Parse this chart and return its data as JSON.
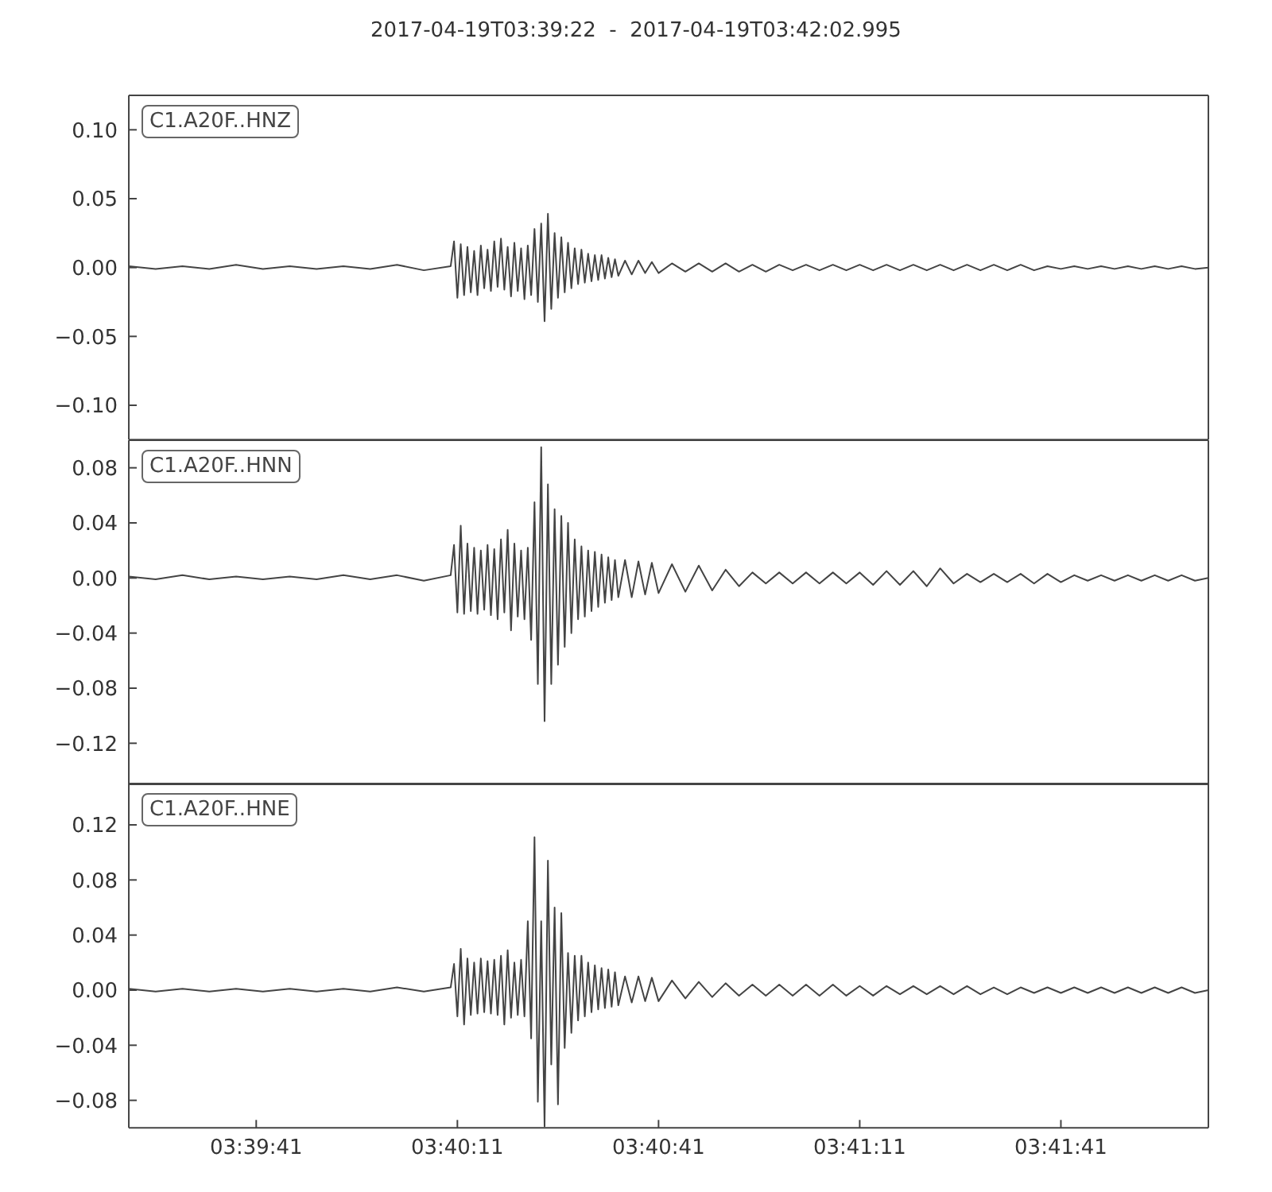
{
  "chart_data": [
    {
      "type": "line",
      "title": "2017-04-19T03:39:22  -  2017-04-19T03:42:02.995",
      "x": [
        "2017-04-19T03:39:22",
        "2017-04-19T03:39:26",
        "2017-04-19T03:39:30",
        "2017-04-19T03:39:34",
        "2017-04-19T03:39:38",
        "2017-04-19T03:39:42",
        "2017-04-19T03:39:46",
        "2017-04-19T03:39:50",
        "2017-04-19T03:39:54",
        "2017-04-19T03:39:58",
        "2017-04-19T03:40:02",
        "2017-04-19T03:40:06",
        "2017-04-19T03:40:10",
        "2017-04-19T03:40:10.500",
        "2017-04-19T03:40:11",
        "2017-04-19T03:40:11.500",
        "2017-04-19T03:40:12",
        "2017-04-19T03:40:12.500",
        "2017-04-19T03:40:13",
        "2017-04-19T03:40:13.500",
        "2017-04-19T03:40:14",
        "2017-04-19T03:40:14.500",
        "2017-04-19T03:40:15",
        "2017-04-19T03:40:15.500",
        "2017-04-19T03:40:16",
        "2017-04-19T03:40:16.500",
        "2017-04-19T03:40:17",
        "2017-04-19T03:40:17.500",
        "2017-04-19T03:40:18",
        "2017-04-19T03:40:18.500",
        "2017-04-19T03:40:19",
        "2017-04-19T03:40:19.500",
        "2017-04-19T03:40:20",
        "2017-04-19T03:40:20.500",
        "2017-04-19T03:40:21",
        "2017-04-19T03:40:21.500",
        "2017-04-19T03:40:22",
        "2017-04-19T03:40:22.500",
        "2017-04-19T03:40:23",
        "2017-04-19T03:40:23.500",
        "2017-04-19T03:40:24",
        "2017-04-19T03:40:24.500",
        "2017-04-19T03:40:25",
        "2017-04-19T03:40:25.500",
        "2017-04-19T03:40:26",
        "2017-04-19T03:40:26.500",
        "2017-04-19T03:40:27",
        "2017-04-19T03:40:27.500",
        "2017-04-19T03:40:28",
        "2017-04-19T03:40:28.500",
        "2017-04-19T03:40:29",
        "2017-04-19T03:40:29.500",
        "2017-04-19T03:40:30",
        "2017-04-19T03:40:30.500",
        "2017-04-19T03:40:31",
        "2017-04-19T03:40:31.500",
        "2017-04-19T03:40:32",
        "2017-04-19T03:40:32.500",
        "2017-04-19T03:40:33",
        "2017-04-19T03:40:33.500",
        "2017-04-19T03:40:34",
        "2017-04-19T03:40:34.500",
        "2017-04-19T03:40:35",
        "2017-04-19T03:40:36",
        "2017-04-19T03:40:37",
        "2017-04-19T03:40:38",
        "2017-04-19T03:40:39",
        "2017-04-19T03:40:40",
        "2017-04-19T03:40:41",
        "2017-04-19T03:40:43",
        "2017-04-19T03:40:45",
        "2017-04-19T03:40:47",
        "2017-04-19T03:40:49",
        "2017-04-19T03:40:51",
        "2017-04-19T03:40:53",
        "2017-04-19T03:40:55",
        "2017-04-19T03:40:57",
        "2017-04-19T03:40:59",
        "2017-04-19T03:41:01",
        "2017-04-19T03:41:03",
        "2017-04-19T03:41:05",
        "2017-04-19T03:41:07",
        "2017-04-19T03:41:09",
        "2017-04-19T03:41:11",
        "2017-04-19T03:41:13",
        "2017-04-19T03:41:15",
        "2017-04-19T03:41:17",
        "2017-04-19T03:41:19",
        "2017-04-19T03:41:21",
        "2017-04-19T03:41:23",
        "2017-04-19T03:41:25",
        "2017-04-19T03:41:27",
        "2017-04-19T03:41:29",
        "2017-04-19T03:41:31",
        "2017-04-19T03:41:33",
        "2017-04-19T03:41:35",
        "2017-04-19T03:41:37",
        "2017-04-19T03:41:39",
        "2017-04-19T03:41:41",
        "2017-04-19T03:41:43",
        "2017-04-19T03:41:45",
        "2017-04-19T03:41:47",
        "2017-04-19T03:41:49",
        "2017-04-19T03:41:51",
        "2017-04-19T03:41:53",
        "2017-04-19T03:41:55",
        "2017-04-19T03:41:57",
        "2017-04-19T03:41:59",
        "2017-04-19T03:42:01",
        "2017-04-19T03:42:02.995"
      ],
      "series": [
        {
          "name": "C1.A20F..HNZ",
          "color": "#444444",
          "values": [
            0.001,
            -0.001,
            0.001,
            -0.001,
            0.002,
            -0.001,
            0.001,
            -0.001,
            0.001,
            -0.001,
            0.002,
            -0.002,
            0.001,
            0.019,
            -0.022,
            0.017,
            -0.02,
            0.015,
            -0.018,
            0.012,
            -0.02,
            0.016,
            -0.015,
            0.013,
            -0.017,
            0.019,
            -0.014,
            0.021,
            -0.016,
            0.015,
            -0.021,
            0.018,
            -0.017,
            0.014,
            -0.023,
            0.016,
            -0.02,
            0.028,
            -0.025,
            0.032,
            -0.039,
            0.039,
            -0.03,
            0.025,
            -0.022,
            0.022,
            -0.018,
            0.018,
            -0.015,
            0.014,
            -0.012,
            0.013,
            -0.011,
            0.01,
            -0.01,
            0.009,
            -0.009,
            0.009,
            -0.008,
            0.007,
            -0.007,
            0.006,
            -0.006,
            0.005,
            -0.005,
            0.005,
            -0.004,
            0.004,
            -0.004,
            0.003,
            -0.003,
            0.003,
            -0.003,
            0.003,
            -0.003,
            0.002,
            -0.003,
            0.002,
            -0.002,
            0.002,
            -0.002,
            0.002,
            -0.002,
            0.002,
            -0.002,
            0.002,
            -0.002,
            0.002,
            -0.002,
            0.002,
            -0.002,
            0.002,
            -0.002,
            0.002,
            -0.002,
            0.002,
            -0.002,
            0.001,
            -0.001,
            0.001,
            -0.001,
            0.001,
            -0.001,
            0.001,
            -0.001,
            0.001,
            -0.001,
            0.001,
            -0.001,
            0
          ]
        }
      ],
      "xlim": [
        "2017-04-19T03:39:22",
        "2017-04-19T03:42:02.995"
      ],
      "xticks": [
        "2017-04-19T03:39:41",
        "2017-04-19T03:40:11",
        "2017-04-19T03:40:41",
        "2017-04-19T03:41:11",
        "2017-04-19T03:41:41"
      ],
      "ylim": [
        -0.125,
        0.125
      ],
      "yticks": [
        {
          "value": -0.1,
          "label": "−0.10"
        },
        {
          "value": -0.05,
          "label": "−0.05"
        },
        {
          "value": 0,
          "label": "0.00"
        },
        0.05,
        {
          "value": 0.1,
          "label": "0.10"
        }
      ],
      "tick_labels": "y"
    },
    {
      "type": "line",
      "x": [
        "2017-04-19T03:39:22",
        "2017-04-19T03:39:26",
        "2017-04-19T03:39:30",
        "2017-04-19T03:39:34",
        "2017-04-19T03:39:38",
        "2017-04-19T03:39:42",
        "2017-04-19T03:39:46",
        "2017-04-19T03:39:50",
        "2017-04-19T03:39:54",
        "2017-04-19T03:39:58",
        "2017-04-19T03:40:02",
        "2017-04-19T03:40:06",
        "2017-04-19T03:40:10",
        "2017-04-19T03:40:10.500",
        "2017-04-19T03:40:11",
        "2017-04-19T03:40:11.500",
        "2017-04-19T03:40:12",
        "2017-04-19T03:40:12.500",
        "2017-04-19T03:40:13",
        "2017-04-19T03:40:13.500",
        "2017-04-19T03:40:14",
        "2017-04-19T03:40:14.500",
        "2017-04-19T03:40:15",
        "2017-04-19T03:40:15.500",
        "2017-04-19T03:40:16",
        "2017-04-19T03:40:16.500",
        "2017-04-19T03:40:17",
        "2017-04-19T03:40:17.500",
        "2017-04-19T03:40:18",
        "2017-04-19T03:40:18.500",
        "2017-04-19T03:40:19",
        "2017-04-19T03:40:19.500",
        "2017-04-19T03:40:20",
        "2017-04-19T03:40:20.500",
        "2017-04-19T03:40:21",
        "2017-04-19T03:40:21.500",
        "2017-04-19T03:40:22",
        "2017-04-19T03:40:22.500",
        "2017-04-19T03:40:23",
        "2017-04-19T03:40:23.500",
        "2017-04-19T03:40:24",
        "2017-04-19T03:40:24.500",
        "2017-04-19T03:40:25",
        "2017-04-19T03:40:25.500",
        "2017-04-19T03:40:26",
        "2017-04-19T03:40:26.500",
        "2017-04-19T03:40:27",
        "2017-04-19T03:40:27.500",
        "2017-04-19T03:40:28",
        "2017-04-19T03:40:28.500",
        "2017-04-19T03:40:29",
        "2017-04-19T03:40:29.500",
        "2017-04-19T03:40:30",
        "2017-04-19T03:40:30.500",
        "2017-04-19T03:40:31",
        "2017-04-19T03:40:31.500",
        "2017-04-19T03:40:32",
        "2017-04-19T03:40:32.500",
        "2017-04-19T03:40:33",
        "2017-04-19T03:40:33.500",
        "2017-04-19T03:40:34",
        "2017-04-19T03:40:34.500",
        "2017-04-19T03:40:35",
        "2017-04-19T03:40:36",
        "2017-04-19T03:40:37",
        "2017-04-19T03:40:38",
        "2017-04-19T03:40:39",
        "2017-04-19T03:40:40",
        "2017-04-19T03:40:41",
        "2017-04-19T03:40:43",
        "2017-04-19T03:40:45",
        "2017-04-19T03:40:47",
        "2017-04-19T03:40:49",
        "2017-04-19T03:40:51",
        "2017-04-19T03:40:53",
        "2017-04-19T03:40:55",
        "2017-04-19T03:40:57",
        "2017-04-19T03:40:59",
        "2017-04-19T03:41:01",
        "2017-04-19T03:41:03",
        "2017-04-19T03:41:05",
        "2017-04-19T03:41:07",
        "2017-04-19T03:41:09",
        "2017-04-19T03:41:11",
        "2017-04-19T03:41:13",
        "2017-04-19T03:41:15",
        "2017-04-19T03:41:17",
        "2017-04-19T03:41:19",
        "2017-04-19T03:41:21",
        "2017-04-19T03:41:23",
        "2017-04-19T03:41:25",
        "2017-04-19T03:41:27",
        "2017-04-19T03:41:29",
        "2017-04-19T03:41:31",
        "2017-04-19T03:41:33",
        "2017-04-19T03:41:35",
        "2017-04-19T03:41:37",
        "2017-04-19T03:41:39",
        "2017-04-19T03:41:41",
        "2017-04-19T03:41:43",
        "2017-04-19T03:41:45",
        "2017-04-19T03:41:47",
        "2017-04-19T03:41:49",
        "2017-04-19T03:41:51",
        "2017-04-19T03:41:53",
        "2017-04-19T03:41:55",
        "2017-04-19T03:41:57",
        "2017-04-19T03:41:59",
        "2017-04-19T03:42:01",
        "2017-04-19T03:42:02.995"
      ],
      "series": [
        {
          "name": "C1.A20F..HNN",
          "color": "#444444",
          "values": [
            0.001,
            -0.001,
            0.002,
            -0.001,
            0.001,
            -0.001,
            0.001,
            -0.001,
            0.002,
            -0.001,
            0.002,
            -0.002,
            0.002,
            0.024,
            -0.025,
            0.038,
            -0.026,
            0.025,
            -0.024,
            0.022,
            -0.026,
            0.02,
            -0.023,
            0.024,
            -0.027,
            0.021,
            -0.03,
            0.028,
            -0.025,
            0.035,
            -0.038,
            0.025,
            -0.028,
            0.02,
            -0.03,
            0.022,
            -0.045,
            0.055,
            -0.077,
            0.095,
            -0.104,
            0.068,
            -0.077,
            0.05,
            -0.063,
            0.045,
            -0.05,
            0.04,
            -0.04,
            0.028,
            -0.03,
            0.023,
            -0.028,
            0.02,
            -0.024,
            0.019,
            -0.021,
            0.017,
            -0.018,
            0.015,
            -0.016,
            0.013,
            -0.014,
            0.013,
            -0.014,
            0.012,
            -0.012,
            0.011,
            -0.011,
            0.01,
            -0.01,
            0.009,
            -0.009,
            0.006,
            -0.006,
            0.004,
            -0.004,
            0.004,
            -0.004,
            0.004,
            -0.004,
            0.004,
            -0.004,
            0.004,
            -0.005,
            0.005,
            -0.005,
            0.005,
            -0.006,
            0.007,
            -0.004,
            0.003,
            -0.003,
            0.003,
            -0.003,
            0.003,
            -0.004,
            0.003,
            -0.003,
            0.002,
            -0.002,
            0.002,
            -0.002,
            0.002,
            -0.002,
            0.002,
            -0.002,
            0.002,
            -0.002,
            0
          ]
        }
      ],
      "xlim": [
        "2017-04-19T03:39:22",
        "2017-04-19T03:42:02.995"
      ],
      "xticks": [
        "2017-04-19T03:39:41",
        "2017-04-19T03:40:11",
        "2017-04-19T03:40:41",
        "2017-04-19T03:41:11",
        "2017-04-19T03:41:41"
      ],
      "ylim": [
        -0.15,
        0.1
      ],
      "yticks": [
        {
          "value": -0.12,
          "label": "−0.12"
        },
        {
          "value": -0.08,
          "label": "−0.08"
        },
        {
          "value": -0.04,
          "label": "−0.04"
        },
        {
          "value": 0,
          "label": "0.00"
        },
        0.04,
        0.08
      ],
      "tick_labels": "y"
    },
    {
      "type": "line",
      "x": [
        "2017-04-19T03:39:22",
        "2017-04-19T03:39:26",
        "2017-04-19T03:39:30",
        "2017-04-19T03:39:34",
        "2017-04-19T03:39:38",
        "2017-04-19T03:39:42",
        "2017-04-19T03:39:46",
        "2017-04-19T03:39:50",
        "2017-04-19T03:39:54",
        "2017-04-19T03:39:58",
        "2017-04-19T03:40:02",
        "2017-04-19T03:40:06",
        "2017-04-19T03:40:10",
        "2017-04-19T03:40:10.500",
        "2017-04-19T03:40:11",
        "2017-04-19T03:40:11.500",
        "2017-04-19T03:40:12",
        "2017-04-19T03:40:12.500",
        "2017-04-19T03:40:13",
        "2017-04-19T03:40:13.500",
        "2017-04-19T03:40:14",
        "2017-04-19T03:40:14.500",
        "2017-04-19T03:40:15",
        "2017-04-19T03:40:15.500",
        "2017-04-19T03:40:16",
        "2017-04-19T03:40:16.500",
        "2017-04-19T03:40:17",
        "2017-04-19T03:40:17.500",
        "2017-04-19T03:40:18",
        "2017-04-19T03:40:18.500",
        "2017-04-19T03:40:19",
        "2017-04-19T03:40:19.500",
        "2017-04-19T03:40:20",
        "2017-04-19T03:40:20.500",
        "2017-04-19T03:40:21",
        "2017-04-19T03:40:21.500",
        "2017-04-19T03:40:22",
        "2017-04-19T03:40:22.500",
        "2017-04-19T03:40:23",
        "2017-04-19T03:40:23.500",
        "2017-04-19T03:40:24",
        "2017-04-19T03:40:24.500",
        "2017-04-19T03:40:25",
        "2017-04-19T03:40:25.500",
        "2017-04-19T03:40:26",
        "2017-04-19T03:40:26.500",
        "2017-04-19T03:40:27",
        "2017-04-19T03:40:27.500",
        "2017-04-19T03:40:28",
        "2017-04-19T03:40:28.500",
        "2017-04-19T03:40:29",
        "2017-04-19T03:40:29.500",
        "2017-04-19T03:40:30",
        "2017-04-19T03:40:30.500",
        "2017-04-19T03:40:31",
        "2017-04-19T03:40:31.500",
        "2017-04-19T03:40:32",
        "2017-04-19T03:40:32.500",
        "2017-04-19T03:40:33",
        "2017-04-19T03:40:33.500",
        "2017-04-19T03:40:34",
        "2017-04-19T03:40:34.500",
        "2017-04-19T03:40:35",
        "2017-04-19T03:40:36",
        "2017-04-19T03:40:37",
        "2017-04-19T03:40:38",
        "2017-04-19T03:40:39",
        "2017-04-19T03:40:40",
        "2017-04-19T03:40:41",
        "2017-04-19T03:40:43",
        "2017-04-19T03:40:45",
        "2017-04-19T03:40:47",
        "2017-04-19T03:40:49",
        "2017-04-19T03:40:51",
        "2017-04-19T03:40:53",
        "2017-04-19T03:40:55",
        "2017-04-19T03:40:57",
        "2017-04-19T03:40:59",
        "2017-04-19T03:41:01",
        "2017-04-19T03:41:03",
        "2017-04-19T03:41:05",
        "2017-04-19T03:41:07",
        "2017-04-19T03:41:09",
        "2017-04-19T03:41:11",
        "2017-04-19T03:41:13",
        "2017-04-19T03:41:15",
        "2017-04-19T03:41:17",
        "2017-04-19T03:41:19",
        "2017-04-19T03:41:21",
        "2017-04-19T03:41:23",
        "2017-04-19T03:41:25",
        "2017-04-19T03:41:27",
        "2017-04-19T03:41:29",
        "2017-04-19T03:41:31",
        "2017-04-19T03:41:33",
        "2017-04-19T03:41:35",
        "2017-04-19T03:41:37",
        "2017-04-19T03:41:39",
        "2017-04-19T03:41:41",
        "2017-04-19T03:41:43",
        "2017-04-19T03:41:45",
        "2017-04-19T03:41:47",
        "2017-04-19T03:41:49",
        "2017-04-19T03:41:51",
        "2017-04-19T03:41:53",
        "2017-04-19T03:41:55",
        "2017-04-19T03:41:57",
        "2017-04-19T03:41:59",
        "2017-04-19T03:42:01",
        "2017-04-19T03:42:02.995"
      ],
      "series": [
        {
          "name": "C1.A20F..HNE",
          "color": "#444444",
          "values": [
            0.001,
            -0.001,
            0.001,
            -0.001,
            0.001,
            -0.001,
            0.001,
            -0.001,
            0.001,
            -0.001,
            0.002,
            -0.001,
            0.002,
            0.019,
            -0.019,
            0.03,
            -0.025,
            0.023,
            -0.018,
            0.02,
            -0.017,
            0.023,
            -0.016,
            0.021,
            -0.017,
            0.022,
            -0.018,
            0.025,
            -0.025,
            0.029,
            -0.02,
            0.02,
            -0.018,
            0.022,
            -0.019,
            0.05,
            -0.035,
            0.111,
            -0.081,
            0.05,
            -0.099,
            0.094,
            -0.054,
            0.06,
            -0.083,
            0.056,
            -0.042,
            0.027,
            -0.031,
            0.025,
            -0.022,
            0.025,
            -0.019,
            0.02,
            -0.016,
            0.018,
            -0.014,
            0.016,
            -0.013,
            0.015,
            -0.012,
            0.013,
            -0.011,
            0.01,
            -0.009,
            0.01,
            -0.008,
            0.009,
            -0.008,
            0.007,
            -0.006,
            0.006,
            -0.005,
            0.005,
            -0.004,
            0.004,
            -0.004,
            0.004,
            -0.004,
            0.004,
            -0.004,
            0.004,
            -0.004,
            0.003,
            -0.004,
            0.003,
            -0.003,
            0.003,
            -0.003,
            0.003,
            -0.003,
            0.003,
            -0.003,
            0.002,
            -0.003,
            0.002,
            -0.002,
            0.002,
            -0.002,
            0.002,
            -0.002,
            0.002,
            -0.002,
            0.002,
            -0.002,
            0.002,
            -0.002,
            0.002,
            -0.002,
            0
          ]
        }
      ],
      "xlim": [
        "2017-04-19T03:39:22",
        "2017-04-19T03:42:02.995"
      ],
      "xticks": [
        {
          "value": "2017-04-19T03:39:41",
          "label": "03:39:41"
        },
        {
          "value": "2017-04-19T03:40:11",
          "label": "03:40:11"
        },
        {
          "value": "2017-04-19T03:40:41",
          "label": "03:40:41"
        },
        {
          "value": "2017-04-19T03:41:11",
          "label": "03:41:11"
        },
        {
          "value": "2017-04-19T03:41:41",
          "label": "03:41:41"
        }
      ],
      "ylim": [
        -0.1,
        0.15
      ],
      "yticks": [
        {
          "value": -0.08,
          "label": "−0.08"
        },
        {
          "value": -0.04,
          "label": "−0.04"
        },
        {
          "value": 0,
          "label": "0.00"
        },
        0.04,
        0.08,
        0.12
      ]
    }
  ]
}
